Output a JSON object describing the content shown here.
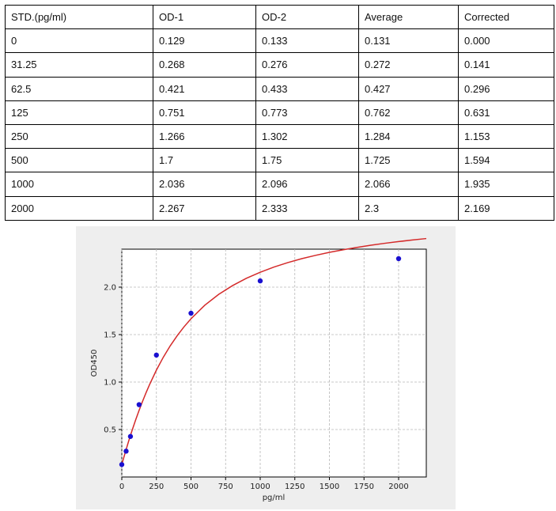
{
  "table": {
    "headers": [
      "STD.(pg/ml)",
      "OD-1",
      "OD-2",
      "Average",
      "Corrected"
    ],
    "rows": [
      [
        "0",
        "0.129",
        "0.133",
        "0.131",
        "0.000"
      ],
      [
        "31.25",
        "0.268",
        "0.276",
        "0.272",
        "0.141"
      ],
      [
        "62.5",
        "0.421",
        "0.433",
        "0.427",
        "0.296"
      ],
      [
        "125",
        "0.751",
        "0.773",
        "0.762",
        "0.631"
      ],
      [
        "250",
        "1.266",
        "1.302",
        "1.284",
        "1.153"
      ],
      [
        "500",
        "1.7",
        "1.75",
        "1.725",
        "1.594"
      ],
      [
        "1000",
        "2.036",
        "2.096",
        "2.066",
        "1.935"
      ],
      [
        "2000",
        "2.267",
        "2.333",
        "2.3",
        "2.169"
      ]
    ]
  },
  "chart_data": {
    "type": "scatter",
    "xlabel": "pg/ml",
    "ylabel": "OD450",
    "xlim": [
      0,
      2200
    ],
    "ylim": [
      0.0,
      2.4
    ],
    "xticks": [
      "0",
      "250",
      "500",
      "750",
      "1000",
      "1250",
      "1500",
      "1750",
      "2000"
    ],
    "xtick_values": [
      0,
      250,
      500,
      750,
      1000,
      1250,
      1500,
      1750,
      2000
    ],
    "yticks": [
      "0.5",
      "1.0",
      "1.5",
      "2.0"
    ],
    "ytick_values": [
      0.5,
      1.0,
      1.5,
      2.0
    ],
    "grid": true,
    "points": {
      "x": [
        0,
        31.25,
        62.5,
        125,
        250,
        500,
        1000,
        2000
      ],
      "y": [
        0.131,
        0.272,
        0.427,
        0.762,
        1.284,
        1.725,
        2.066,
        2.3
      ],
      "color": "#1a10d0"
    },
    "fit_curve": {
      "color": "#d42a2a",
      "x": [
        0,
        25,
        50,
        75,
        100,
        125,
        150,
        175,
        200,
        250,
        300,
        350,
        400,
        450,
        500,
        600,
        700,
        800,
        900,
        1000,
        1100,
        1200,
        1300,
        1400,
        1500,
        1600,
        1700,
        1800,
        1900,
        2000,
        2100,
        2200
      ],
      "y": [
        0.131,
        0.259,
        0.38,
        0.494,
        0.601,
        0.702,
        0.797,
        0.887,
        0.971,
        1.126,
        1.262,
        1.382,
        1.488,
        1.583,
        1.667,
        1.81,
        1.924,
        2.016,
        2.093,
        2.157,
        2.212,
        2.259,
        2.3,
        2.335,
        2.367,
        2.394,
        2.419,
        2.442,
        2.462,
        2.48,
        2.497,
        2.512
      ]
    }
  }
}
